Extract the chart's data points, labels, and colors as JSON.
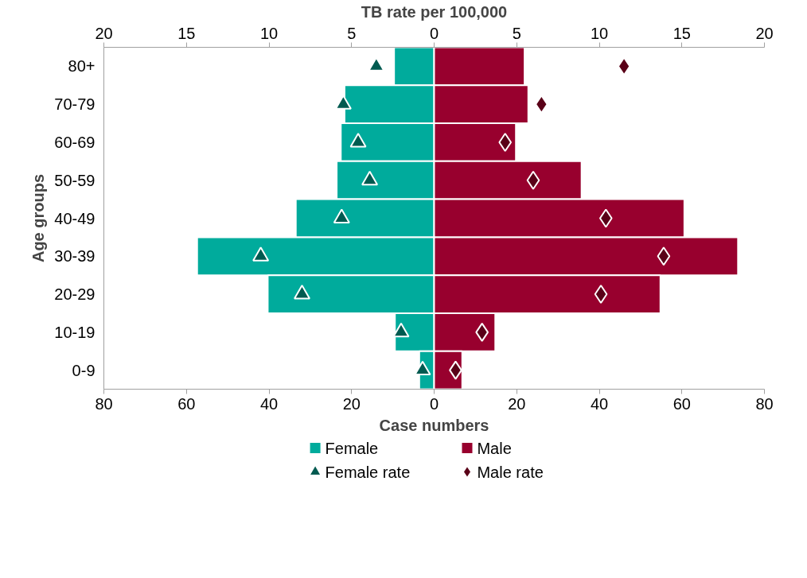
{
  "chart_data": {
    "type": "bar",
    "orientation": "horizontal",
    "xlabel": "Case numbers",
    "x2label": "TB rate per 100,000",
    "ylabel": "Age groups",
    "categories": [
      "80+",
      "70-79",
      "60-69",
      "50-59",
      "40-49",
      "30-39",
      "20-29",
      "10-19",
      "0-9"
    ],
    "series": [
      {
        "name": "Female",
        "color": "#00ab9c",
        "values": [
          -9.7,
          -21.7,
          -22.6,
          -23.6,
          -33.5,
          -57.4,
          -40.3,
          -9.5,
          -3.6
        ]
      },
      {
        "name": "Male",
        "color": "#98002e",
        "values": [
          21.9,
          22.8,
          19.8,
          35.7,
          60.6,
          73.6,
          54.8,
          14.8,
          6.8
        ]
      },
      {
        "name": "Female rate",
        "type": "scatter",
        "axis": "x2",
        "marker": "triangle",
        "color": "#005a50",
        "values": [
          -3.5,
          -5.5,
          -4.6,
          -3.9,
          -5.6,
          -10.5,
          -8.0,
          -2.0,
          -0.7
        ]
      },
      {
        "name": "Male rate",
        "type": "scatter",
        "axis": "x2",
        "marker": "diamond",
        "color": "#5a0018",
        "values": [
          11.5,
          6.5,
          4.3,
          6.0,
          10.4,
          13.9,
          10.1,
          2.9,
          1.3
        ]
      }
    ],
    "xlim": [
      -80,
      80
    ],
    "xticks": [
      {
        "value": -80,
        "label": "80"
      },
      {
        "value": -60,
        "label": "60"
      },
      {
        "value": -40,
        "label": "40"
      },
      {
        "value": -20,
        "label": "20"
      },
      0,
      20,
      40,
      60,
      80
    ],
    "x2lim": [
      -20,
      20
    ],
    "x2ticks": [
      {
        "value": -20,
        "label": "20"
      },
      {
        "value": -15,
        "label": "15"
      },
      {
        "value": -10,
        "label": "10"
      },
      {
        "value": -5,
        "label": "5"
      },
      0,
      5,
      10,
      15,
      20
    ],
    "stacked": true,
    "grid": false,
    "legend": "bottom"
  }
}
